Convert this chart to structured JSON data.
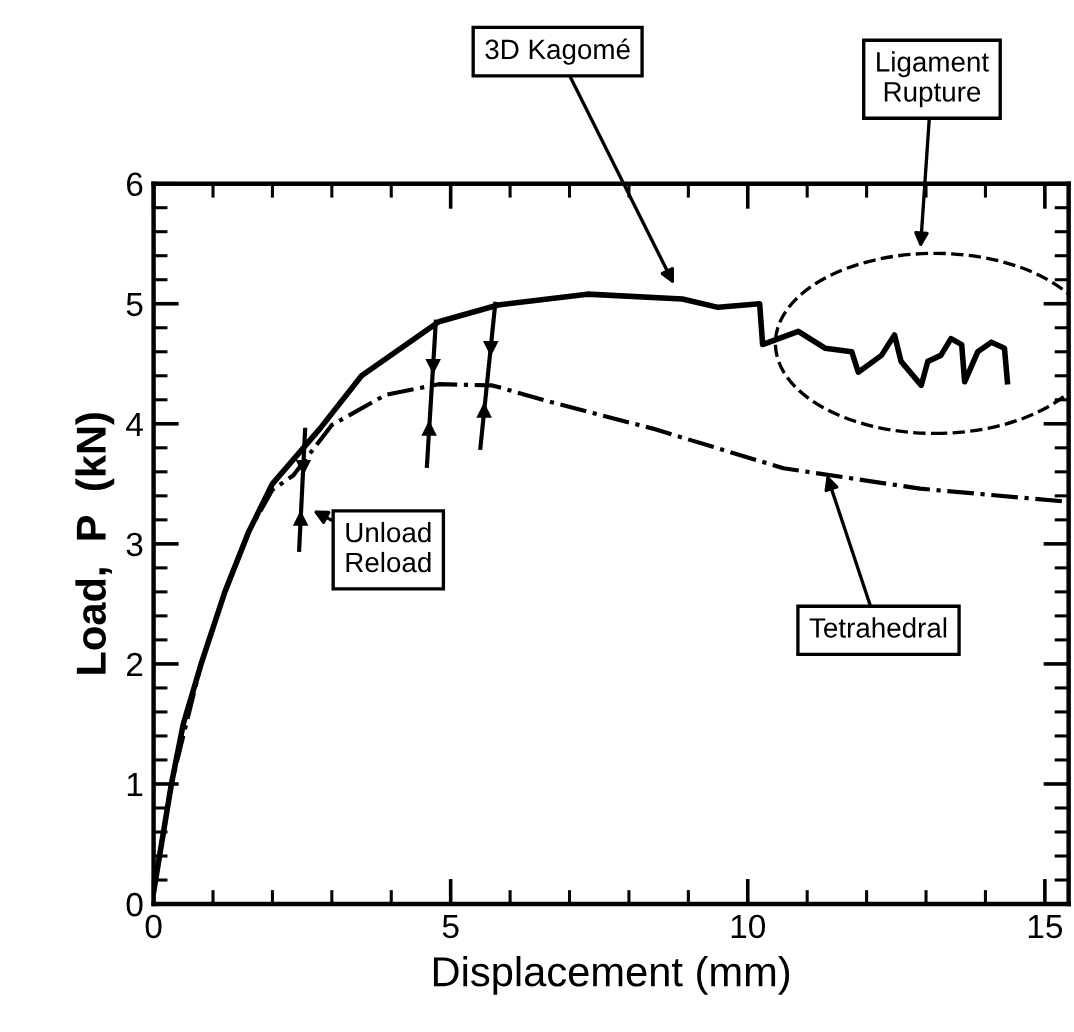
{
  "chart_data": {
    "type": "line",
    "xlabel": "Displacement (mm)",
    "ylabel": "Load,  P  (kN)",
    "xlim": [
      0,
      15.4
    ],
    "ylim": [
      0,
      6
    ],
    "xticks": [
      0,
      5,
      10,
      15
    ],
    "yticks": [
      0,
      1,
      2,
      3,
      4,
      5,
      6
    ],
    "grid": false,
    "marker": "none",
    "series": [
      {
        "color": "#000000",
        "line_style": "solid",
        "x": [
          0,
          0.1,
          0.3,
          0.5,
          0.8,
          1.2,
          1.6,
          2.0,
          2.8,
          3.5,
          4.8,
          5.8,
          7.3,
          8.9,
          9.5,
          10.2,
          10.25,
          10.85,
          11.3,
          11.75,
          11.86,
          12.25,
          12.47,
          12.58,
          12.92,
          13.03,
          13.25,
          13.42,
          13.6,
          13.65,
          13.87,
          14.1,
          14.32,
          14.37
        ],
        "values": [
          0.1,
          0.4,
          1.0,
          1.5,
          2.0,
          2.6,
          3.1,
          3.5,
          3.96,
          4.4,
          4.85,
          4.99,
          5.08,
          5.04,
          4.97,
          5.0,
          4.66,
          4.77,
          4.63,
          4.6,
          4.43,
          4.57,
          4.74,
          4.52,
          4.32,
          4.52,
          4.57,
          4.71,
          4.66,
          4.35,
          4.6,
          4.68,
          4.63,
          4.35
        ]
      },
      {
        "color": "#000000",
        "line_style": "dashdot",
        "x": [
          0,
          0.3,
          0.8,
          1.2,
          1.6,
          2.0,
          2.35,
          3.0,
          3.9,
          4.8,
          5.7,
          6.7,
          8.4,
          10.6,
          12.9,
          15.4
        ],
        "values": [
          0.1,
          1.0,
          2.0,
          2.6,
          3.1,
          3.45,
          3.57,
          3.99,
          4.24,
          4.33,
          4.32,
          4.18,
          3.96,
          3.63,
          3.46,
          3.35
        ]
      },
      {
        "color": "#000000",
        "line_style": "solid",
        "x": [
          2.55,
          2.45
        ],
        "values": [
          3.95,
          2.95
        ]
      },
      {
        "color": "#000000",
        "line_style": "solid",
        "x": [
          4.75,
          4.6
        ],
        "values": [
          4.85,
          3.65
        ]
      },
      {
        "color": "#000000",
        "line_style": "solid",
        "x": [
          5.75,
          5.5
        ],
        "values": [
          5.0,
          3.8
        ]
      }
    ],
    "annotations": [
      {
        "text": "3D Kagomé",
        "x": 8.8,
        "y": 5.12
      },
      "Ligament\nRupture",
      {
        "text": "Unload\nReload",
        "x": 2.6,
        "y": 3.3
      },
      {
        "text": "Tetrahedral",
        "x": 11.3,
        "y": 3.62
      }
    ]
  }
}
